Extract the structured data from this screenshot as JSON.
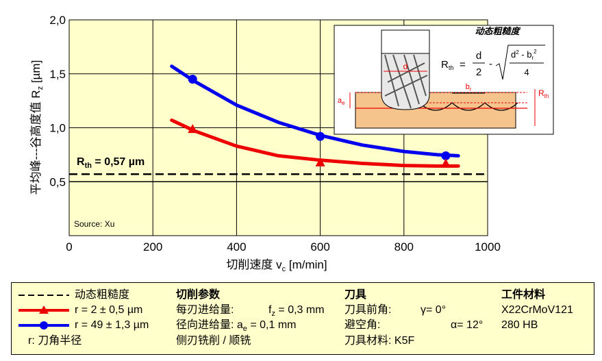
{
  "chart_data": {
    "type": "line",
    "xlabel": "切削速度 v",
    "xlabel_sub": "c",
    "xlabel_unit": " [m/min]",
    "ylabel": "平均峰---谷高度值 R",
    "ylabel_sub": "z",
    "ylabel_unit": " [µm]",
    "xlim": [
      0,
      1000
    ],
    "ylim": [
      0,
      2.0
    ],
    "x_ticks": [
      "0",
      "200",
      "400",
      "600",
      "800",
      "1000"
    ],
    "y_ticks": [
      "2,0",
      "1,5",
      "1,0",
      "0,5"
    ],
    "y_tick_values": [
      2.0,
      1.5,
      1.0,
      0.5
    ],
    "grid": true,
    "series": [
      {
        "name": "r = 49 ± 1,3 µm",
        "color": "#0000ee",
        "marker": "circle",
        "points": [
          {
            "x": 295,
            "y": 1.45
          },
          {
            "x": 600,
            "y": 0.92
          },
          {
            "x": 900,
            "y": 0.74
          }
        ],
        "curve": [
          [
            245,
            1.57
          ],
          [
            300,
            1.43
          ],
          [
            400,
            1.21
          ],
          [
            500,
            1.05
          ],
          [
            600,
            0.93
          ],
          [
            700,
            0.84
          ],
          [
            800,
            0.78
          ],
          [
            880,
            0.75
          ],
          [
            930,
            0.74
          ]
        ]
      },
      {
        "name": "r = 2 ± 0,5 µm",
        "color": "#ee0000",
        "marker": "triangle",
        "points": [
          {
            "x": 295,
            "y": 0.99
          },
          {
            "x": 600,
            "y": 0.68
          },
          {
            "x": 900,
            "y": 0.67
          }
        ],
        "curve": [
          [
            245,
            1.07
          ],
          [
            300,
            0.97
          ],
          [
            400,
            0.83
          ],
          [
            500,
            0.74
          ],
          [
            600,
            0.7
          ],
          [
            700,
            0.67
          ],
          [
            800,
            0.65
          ],
          [
            880,
            0.645
          ],
          [
            930,
            0.645
          ]
        ]
      }
    ],
    "reference_lines": [
      {
        "name": "动态粗糙度",
        "y": 0.57,
        "style": "dashed",
        "color": "#000000"
      },
      {
        "name": "",
        "y": 0.5,
        "style": "solid",
        "color": "#000000"
      }
    ],
    "annotation_rth": {
      "main": "R",
      "sub": "th",
      "value": " = 0,57 µm",
      "x": 15,
      "y": 0.6
    },
    "source": "Source: Xu"
  },
  "inset": {
    "title": "动态粗糙度",
    "formula_lhs": "R",
    "formula_lhs_sub": "th",
    "formula_eq": "=",
    "frac_num": "d",
    "frac_den": "2",
    "minus": "-",
    "sqrt_num_a": "d",
    "sqrt_num_a_sup": "2",
    "sqrt_num_op": " - b",
    "sqrt_num_b_sub": "r",
    "sqrt_num_b_sup": "2",
    "sqrt_den": "4",
    "label_d": "d",
    "label_a": "a",
    "label_a_sub": "e",
    "label_b": "b",
    "label_b_sub": "r",
    "label_rth": "R",
    "label_rth_sub": "th"
  },
  "legend": {
    "item_dynamic": "动态粗糙度",
    "item_r2": "r = 2 ± 0,5 µm",
    "item_r49": "r = 49 ± 1,3 µm",
    "item_r": "r:  刀角半径",
    "cutting_title": "切削参数",
    "feed_label": "每刃进给量:",
    "feed_value": "f",
    "feed_value_sub": "z",
    "feed_value_rest": " = 0,3 mm",
    "radial_label": "径向进给量: a",
    "radial_sub": "e",
    "radial_rest": " = 0,1 mm",
    "mode": "侧刃铣削 / 顺铣",
    "tool_title": "刀具",
    "rake_label": "刀具前角:",
    "rake_value": "γ= 0°",
    "clearance_label": "避空角:",
    "clearance_value": "α= 12°",
    "tool_material": "刀具材料: K5F",
    "work_title": "工件材料",
    "work_material": "X22CrMoV121",
    "work_hardness": "280 HB"
  },
  "colors": {
    "plot_bg": "#ffffcc",
    "inset_bg": "#ffffff",
    "workpiece": "#f4c48c",
    "blue": "#0000ee",
    "red": "#ee0000"
  }
}
